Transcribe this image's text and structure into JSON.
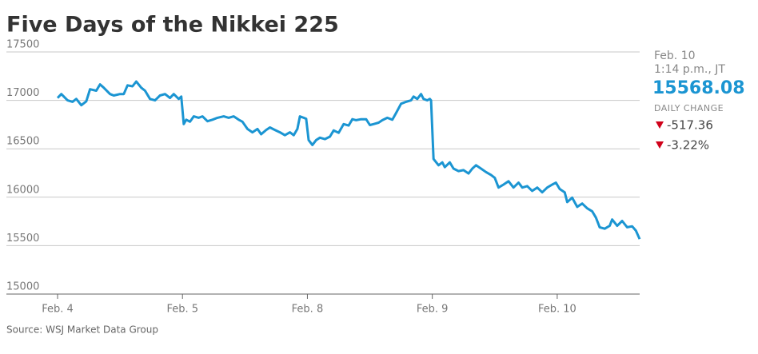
{
  "chart_data": {
    "type": "line",
    "title": "Five Days of the Nikkei 225",
    "x": [
      0,
      0.03,
      0.08,
      0.12,
      0.15,
      0.19,
      0.23,
      0.26,
      0.31,
      0.34,
      0.37,
      0.42,
      0.45,
      0.5,
      0.53,
      0.56,
      0.6,
      0.63,
      0.67,
      0.7,
      0.74,
      0.78,
      0.82,
      0.86,
      0.9,
      0.93,
      0.97,
      0.99,
      1.01,
      1.03,
      1.06,
      1.09,
      1.13,
      1.16,
      1.2,
      1.24,
      1.28,
      1.33,
      1.37,
      1.41,
      1.45,
      1.48,
      1.52,
      1.56,
      1.6,
      1.63,
      1.67,
      1.7,
      1.74,
      1.78,
      1.82,
      1.86,
      1.89,
      1.92,
      1.94,
      1.97,
      1.99,
      2.01,
      2.04,
      2.07,
      2.1,
      2.14,
      2.18,
      2.21,
      2.25,
      2.29,
      2.33,
      2.36,
      2.39,
      2.43,
      2.47,
      2.5,
      2.53,
      2.57,
      2.6,
      2.64,
      2.68,
      2.71,
      2.75,
      2.79,
      2.83,
      2.85,
      2.88,
      2.91,
      2.93,
      2.96,
      2.98,
      2.99,
      3.01,
      3.05,
      3.08,
      3.1,
      3.14,
      3.17,
      3.21,
      3.25,
      3.29,
      3.32,
      3.35,
      3.39,
      3.43,
      3.47,
      3.5,
      3.53,
      3.57,
      3.61,
      3.65,
      3.69,
      3.72,
      3.76,
      3.8,
      3.84,
      3.88,
      3.92,
      3.96,
      3.99,
      4.02,
      4.06,
      4.08,
      4.12,
      4.16,
      4.2,
      4.24,
      4.28,
      4.31,
      4.34,
      4.38,
      4.42,
      4.44,
      4.48,
      4.52,
      4.56,
      4.6,
      4.63,
      4.66
    ],
    "series": [
      {
        "name": "Nikkei 225",
        "color": "#1b95d2",
        "values": [
          17025,
          17065,
          17000,
          16985,
          17015,
          16950,
          16990,
          17115,
          17100,
          17165,
          17130,
          17065,
          17050,
          17065,
          17065,
          17155,
          17145,
          17195,
          17130,
          17100,
          17015,
          17000,
          17050,
          17065,
          17025,
          17065,
          17015,
          17040,
          16755,
          16800,
          16780,
          16835,
          16820,
          16835,
          16785,
          16800,
          16820,
          16835,
          16820,
          16835,
          16800,
          16780,
          16705,
          16670,
          16705,
          16650,
          16695,
          16720,
          16695,
          16670,
          16640,
          16670,
          16640,
          16705,
          16835,
          16820,
          16810,
          16590,
          16540,
          16590,
          16615,
          16600,
          16625,
          16690,
          16665,
          16755,
          16740,
          16805,
          16795,
          16805,
          16805,
          16745,
          16755,
          16770,
          16795,
          16820,
          16800,
          16870,
          16965,
          16985,
          17000,
          17040,
          17015,
          17065,
          17015,
          17000,
          17015,
          17000,
          16395,
          16330,
          16360,
          16310,
          16360,
          16295,
          16270,
          16280,
          16245,
          16295,
          16330,
          16295,
          16260,
          16230,
          16200,
          16100,
          16130,
          16165,
          16100,
          16150,
          16100,
          16115,
          16065,
          16100,
          16050,
          16100,
          16130,
          16150,
          16085,
          16050,
          15950,
          15995,
          15900,
          15935,
          15885,
          15855,
          15790,
          15690,
          15675,
          15705,
          15770,
          15705,
          15755,
          15690,
          15700,
          15655,
          15568
        ]
      }
    ],
    "xlim": [
      0,
      4.66
    ],
    "xticks": [
      {
        "value": 0,
        "label": "Feb. 4"
      },
      {
        "value": 1,
        "label": "Feb. 5"
      },
      {
        "value": 2,
        "label": "Feb. 8"
      },
      {
        "value": 3,
        "label": "Feb. 9"
      },
      {
        "value": 4,
        "label": "Feb. 10"
      }
    ],
    "ylim": [
      15000,
      17500
    ],
    "yticks": [
      15000,
      15500,
      16000,
      16500,
      17000,
      17500
    ],
    "grid": true
  },
  "side_panel": {
    "date": "Feb. 10",
    "time": "1:14 p.m., JT",
    "value": "15568.08",
    "label": "DAILY CHANGE",
    "change": "-517.36",
    "change_pct": "-3.22%"
  },
  "source": "Source: WSJ Market Data Group"
}
